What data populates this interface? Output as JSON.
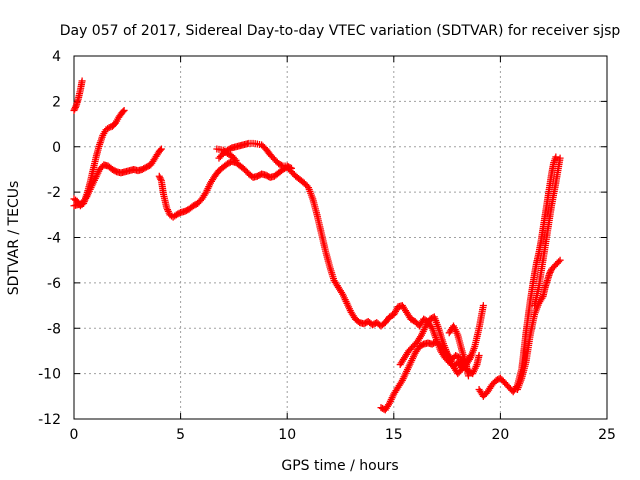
{
  "chart_data": {
    "type": "scatter",
    "title": "Day 057 of 2017, Sidereal Day-to-day VTEC variation (SDTVAR) for receiver sjsp",
    "xlabel": "GPS time / hours",
    "ylabel": "SDTVAR / TECUs",
    "xlim": [
      0,
      25
    ],
    "ylim": [
      -12,
      4
    ],
    "x_ticks": [
      0,
      5,
      10,
      15,
      20,
      25
    ],
    "y_ticks": [
      -12,
      -10,
      -8,
      -6,
      -4,
      -2,
      0,
      2,
      4
    ],
    "x_tick_labels": [
      "0",
      "5",
      "10",
      "15",
      "20",
      "25"
    ],
    "y_tick_labels": [
      "-12",
      "-10",
      "-8",
      "-6",
      "-4",
      "-2",
      "0",
      "2",
      "4"
    ],
    "grid": true,
    "marker": "+",
    "color": "#ff0000",
    "series": [
      {
        "points": [
          [
            0.0,
            1.6
          ],
          [
            0.1,
            1.8
          ],
          [
            0.2,
            2.1
          ],
          [
            0.3,
            2.5
          ],
          [
            0.38,
            2.9
          ]
        ]
      },
      {
        "points": [
          [
            0.0,
            -2.3
          ],
          [
            0.15,
            -2.4
          ],
          [
            0.3,
            -2.6
          ],
          [
            0.45,
            -2.5
          ],
          [
            0.6,
            -2.1
          ],
          [
            0.75,
            -1.6
          ],
          [
            0.9,
            -1.0
          ],
          [
            1.05,
            -0.4
          ],
          [
            1.2,
            0.1
          ],
          [
            1.35,
            0.5
          ],
          [
            1.5,
            0.75
          ],
          [
            1.65,
            0.85
          ],
          [
            1.8,
            0.9
          ],
          [
            1.95,
            1.05
          ],
          [
            2.1,
            1.3
          ],
          [
            2.25,
            1.5
          ],
          [
            2.35,
            1.6
          ]
        ]
      },
      {
        "points": [
          [
            0.0,
            -2.6
          ],
          [
            0.2,
            -2.55
          ],
          [
            0.4,
            -2.5
          ],
          [
            0.6,
            -2.2
          ],
          [
            0.8,
            -1.8
          ],
          [
            1.0,
            -1.4
          ],
          [
            1.2,
            -1.0
          ],
          [
            1.4,
            -0.8
          ],
          [
            1.6,
            -0.85
          ],
          [
            1.8,
            -1.0
          ],
          [
            2.0,
            -1.1
          ],
          [
            2.2,
            -1.15
          ],
          [
            2.4,
            -1.1
          ],
          [
            2.6,
            -1.05
          ],
          [
            2.8,
            -1.0
          ],
          [
            3.0,
            -1.05
          ],
          [
            3.2,
            -1.0
          ],
          [
            3.4,
            -0.9
          ],
          [
            3.6,
            -0.8
          ],
          [
            3.8,
            -0.5
          ],
          [
            4.0,
            -0.2
          ],
          [
            4.1,
            -0.1
          ]
        ]
      },
      {
        "points": [
          [
            4.0,
            -1.3
          ],
          [
            4.1,
            -1.5
          ],
          [
            4.2,
            -2.1
          ],
          [
            4.35,
            -2.7
          ],
          [
            4.5,
            -3.0
          ],
          [
            4.65,
            -3.1
          ],
          [
            4.8,
            -3.0
          ],
          [
            5.0,
            -2.9
          ],
          [
            5.2,
            -2.85
          ],
          [
            5.4,
            -2.75
          ],
          [
            5.6,
            -2.6
          ],
          [
            5.8,
            -2.5
          ],
          [
            6.0,
            -2.3
          ],
          [
            6.2,
            -2.0
          ],
          [
            6.4,
            -1.6
          ],
          [
            6.6,
            -1.3
          ],
          [
            6.8,
            -1.05
          ],
          [
            7.0,
            -0.9
          ],
          [
            7.2,
            -0.75
          ],
          [
            7.4,
            -0.65
          ],
          [
            7.6,
            -0.7
          ],
          [
            7.8,
            -0.85
          ],
          [
            8.0,
            -1.0
          ],
          [
            8.2,
            -1.2
          ],
          [
            8.4,
            -1.35
          ],
          [
            8.6,
            -1.3
          ],
          [
            8.8,
            -1.2
          ],
          [
            9.0,
            -1.25
          ],
          [
            9.2,
            -1.35
          ],
          [
            9.4,
            -1.3
          ],
          [
            9.6,
            -1.15
          ],
          [
            9.8,
            -1.0
          ],
          [
            10.0,
            -0.9
          ],
          [
            10.2,
            -1.1
          ],
          [
            10.4,
            -1.3
          ],
          [
            10.6,
            -1.45
          ],
          [
            10.8,
            -1.6
          ],
          [
            11.0,
            -1.8
          ],
          [
            11.2,
            -2.3
          ],
          [
            11.4,
            -3.0
          ],
          [
            11.6,
            -3.8
          ],
          [
            11.8,
            -4.6
          ],
          [
            12.0,
            -5.3
          ],
          [
            12.2,
            -5.9
          ],
          [
            12.4,
            -6.2
          ],
          [
            12.6,
            -6.5
          ],
          [
            12.8,
            -6.9
          ],
          [
            13.0,
            -7.3
          ],
          [
            13.2,
            -7.6
          ],
          [
            13.4,
            -7.75
          ],
          [
            13.6,
            -7.8
          ],
          [
            13.8,
            -7.7
          ],
          [
            14.0,
            -7.85
          ],
          [
            14.2,
            -7.75
          ],
          [
            14.4,
            -7.9
          ],
          [
            14.6,
            -7.75
          ],
          [
            14.8,
            -7.5
          ],
          [
            15.0,
            -7.4
          ],
          [
            15.2,
            -7.05
          ],
          [
            15.4,
            -7.0
          ],
          [
            15.6,
            -7.3
          ],
          [
            15.8,
            -7.6
          ],
          [
            16.0,
            -7.7
          ],
          [
            16.2,
            -7.9
          ],
          [
            16.4,
            -7.6
          ],
          [
            16.6,
            -7.7
          ],
          [
            16.8,
            -8.0
          ],
          [
            17.0,
            -8.5
          ],
          [
            17.2,
            -9.0
          ],
          [
            17.4,
            -9.3
          ],
          [
            17.6,
            -9.5
          ],
          [
            17.8,
            -9.7
          ],
          [
            18.0,
            -9.5
          ],
          [
            18.2,
            -9.8
          ],
          [
            18.4,
            -9.6
          ],
          [
            18.6,
            -9.3
          ],
          [
            18.8,
            -8.8
          ],
          [
            19.0,
            -8.0
          ],
          [
            19.2,
            -7.0
          ]
        ]
      },
      {
        "points": [
          [
            6.8,
            -0.5
          ],
          [
            7.0,
            -0.3
          ],
          [
            7.2,
            -0.15
          ],
          [
            7.4,
            -0.05
          ],
          [
            7.6,
            0.0
          ],
          [
            7.8,
            0.05
          ],
          [
            8.0,
            0.1
          ],
          [
            8.2,
            0.15
          ],
          [
            8.4,
            0.15
          ],
          [
            8.6,
            0.12
          ],
          [
            8.8,
            0.08
          ],
          [
            9.0,
            -0.1
          ],
          [
            9.2,
            -0.35
          ],
          [
            9.4,
            -0.55
          ],
          [
            9.6,
            -0.75
          ],
          [
            9.8,
            -0.85
          ],
          [
            10.0,
            -0.85
          ],
          [
            10.2,
            -0.95
          ]
        ]
      },
      {
        "points": [
          [
            6.7,
            -0.1
          ],
          [
            7.0,
            -0.15
          ],
          [
            7.2,
            -0.3
          ],
          [
            7.4,
            -0.4
          ],
          [
            7.6,
            -0.6
          ]
        ]
      },
      {
        "points": [
          [
            14.4,
            -11.5
          ],
          [
            14.6,
            -11.6
          ],
          [
            14.8,
            -11.3
          ],
          [
            15.0,
            -10.9
          ],
          [
            15.2,
            -10.6
          ],
          [
            15.4,
            -10.3
          ],
          [
            15.6,
            -9.9
          ],
          [
            15.8,
            -9.5
          ],
          [
            16.0,
            -9.1
          ],
          [
            16.2,
            -8.8
          ],
          [
            16.4,
            -8.7
          ],
          [
            16.6,
            -8.65
          ],
          [
            16.8,
            -8.7
          ],
          [
            17.0,
            -8.6
          ],
          [
            17.2,
            -8.8
          ],
          [
            17.4,
            -9.0
          ],
          [
            17.6,
            -9.3
          ],
          [
            17.8,
            -9.7
          ],
          [
            18.0,
            -10.0
          ],
          [
            18.2,
            -9.8
          ],
          [
            18.4,
            -9.5
          ],
          [
            18.6,
            -9.2
          ]
        ]
      },
      {
        "points": [
          [
            15.3,
            -9.6
          ],
          [
            15.5,
            -9.3
          ],
          [
            15.7,
            -9.0
          ],
          [
            15.9,
            -8.8
          ],
          [
            16.1,
            -8.6
          ],
          [
            16.3,
            -8.3
          ],
          [
            16.5,
            -7.9
          ],
          [
            16.7,
            -7.6
          ],
          [
            16.9,
            -7.5
          ],
          [
            17.1,
            -8.0
          ],
          [
            17.3,
            -8.6
          ],
          [
            17.5,
            -9.1
          ],
          [
            17.7,
            -9.4
          ],
          [
            17.9,
            -9.2
          ],
          [
            18.1,
            -9.3
          ],
          [
            18.3,
            -9.7
          ],
          [
            18.5,
            -9.9
          ],
          [
            18.7,
            -10.0
          ],
          [
            18.9,
            -9.6
          ],
          [
            19.0,
            -9.2
          ]
        ]
      },
      {
        "points": [
          [
            17.6,
            -8.2
          ],
          [
            17.8,
            -7.9
          ],
          [
            18.0,
            -8.3
          ],
          [
            18.2,
            -9.0
          ],
          [
            18.4,
            -9.6
          ],
          [
            18.5,
            -10.1
          ]
        ]
      },
      {
        "points": [
          [
            19.0,
            -10.7
          ],
          [
            19.2,
            -11.0
          ],
          [
            19.4,
            -10.8
          ],
          [
            19.6,
            -10.5
          ],
          [
            19.8,
            -10.3
          ],
          [
            20.0,
            -10.2
          ],
          [
            20.2,
            -10.4
          ],
          [
            20.4,
            -10.6
          ],
          [
            20.6,
            -10.8
          ],
          [
            20.8,
            -10.5
          ],
          [
            21.0,
            -9.8
          ],
          [
            21.1,
            -9.0
          ],
          [
            21.2,
            -8.2
          ],
          [
            21.3,
            -7.5
          ],
          [
            21.4,
            -6.8
          ],
          [
            21.5,
            -6.2
          ],
          [
            21.6,
            -5.6
          ],
          [
            21.7,
            -5.1
          ],
          [
            21.8,
            -4.7
          ],
          [
            21.9,
            -4.2
          ],
          [
            22.0,
            -3.6
          ],
          [
            22.1,
            -3.0
          ],
          [
            22.2,
            -2.4
          ],
          [
            22.3,
            -1.8
          ],
          [
            22.4,
            -1.2
          ],
          [
            22.5,
            -0.7
          ],
          [
            22.6,
            -0.45
          ]
        ]
      },
      {
        "points": [
          [
            20.8,
            -10.7
          ],
          [
            21.0,
            -10.2
          ],
          [
            21.2,
            -9.5
          ],
          [
            21.4,
            -8.3
          ],
          [
            21.6,
            -7.4
          ],
          [
            21.8,
            -6.9
          ],
          [
            22.0,
            -6.6
          ],
          [
            22.1,
            -6.2
          ],
          [
            22.2,
            -5.9
          ],
          [
            22.3,
            -5.6
          ],
          [
            22.4,
            -5.4
          ],
          [
            22.6,
            -5.2
          ],
          [
            22.8,
            -5.0
          ]
        ]
      },
      {
        "points": [
          [
            21.6,
            -7.0
          ],
          [
            21.8,
            -6.2
          ],
          [
            22.0,
            -5.0
          ],
          [
            22.2,
            -3.8
          ],
          [
            22.4,
            -2.6
          ],
          [
            22.6,
            -1.6
          ],
          [
            22.8,
            -0.5
          ]
        ]
      }
    ]
  }
}
